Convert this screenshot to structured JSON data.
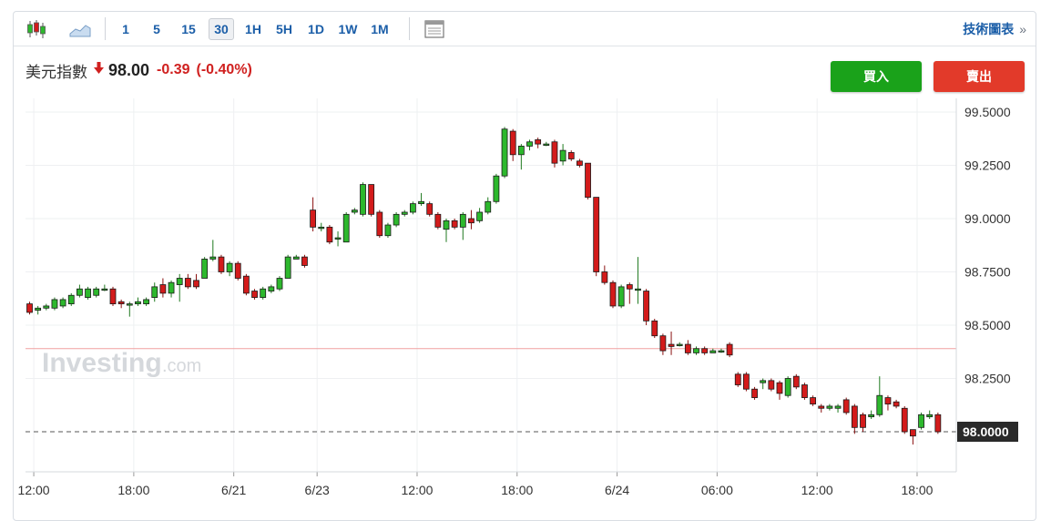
{
  "toolbar": {
    "chart_type_icons": [
      "candlestick-chart-icon",
      "area-chart-icon"
    ],
    "intervals": [
      "1",
      "5",
      "15",
      "30",
      "1H",
      "5H",
      "1D",
      "1W",
      "1M"
    ],
    "active_interval": "30",
    "table_icon": "table-view-icon",
    "tech_chart_label": "技術圖表",
    "tech_chart_chevron": "»"
  },
  "quote": {
    "name": "美元指數",
    "direction_icon": "down-arrow-icon",
    "price": "98.00",
    "change": "-0.39",
    "change_pct": "(-0.40%)"
  },
  "buttons": {
    "buy": "買入",
    "sell": "賣出"
  },
  "colors": {
    "up": "#2db82d",
    "down": "#d31b1b",
    "accent": "#1b5ea8",
    "prev_close_line": "#f0a0a0"
  },
  "watermark": {
    "brand": "Investing",
    "suffix": ".com"
  },
  "chart_data": {
    "type": "candlestick",
    "y_axis": {
      "ticks": [
        "99.5000",
        "99.2500",
        "99.0000",
        "98.7500",
        "98.5000",
        "98.2500"
      ],
      "tick_values": [
        99.5,
        99.25,
        99.0,
        98.75,
        98.5,
        98.25
      ],
      "range": [
        97.8,
        99.6
      ]
    },
    "x_axis": {
      "ticks": [
        "12:00",
        "18:00",
        "6/21",
        "6/23",
        "12:00",
        "18:00",
        "6/24",
        "06:00",
        "12:00",
        "18:00"
      ],
      "tick_index": [
        0.5,
        12.5,
        24.5,
        34.5,
        46.5,
        58.5,
        70.5,
        82.5,
        94.5,
        106.5
      ]
    },
    "current_price": {
      "value": 98.0,
      "label": "98.0000"
    },
    "previous_close": 98.39,
    "grid": true,
    "candles": [
      [
        98.6,
        98.56,
        98.61,
        98.55
      ],
      [
        98.57,
        98.58,
        98.59,
        98.55
      ],
      [
        98.58,
        98.59,
        98.6,
        98.57
      ],
      [
        98.58,
        98.62,
        98.63,
        98.57
      ],
      [
        98.59,
        98.62,
        98.63,
        98.58
      ],
      [
        98.6,
        98.64,
        98.65,
        98.59
      ],
      [
        98.64,
        98.67,
        98.69,
        98.63
      ],
      [
        98.63,
        98.67,
        98.68,
        98.62
      ],
      [
        98.64,
        98.67,
        98.68,
        98.63
      ],
      [
        98.67,
        98.67,
        98.69,
        98.66
      ],
      [
        98.67,
        98.6,
        98.68,
        98.59
      ],
      [
        98.61,
        98.6,
        98.62,
        98.58
      ],
      [
        98.6,
        98.6,
        98.61,
        98.54
      ],
      [
        98.6,
        98.61,
        98.63,
        98.59
      ],
      [
        98.6,
        98.62,
        98.63,
        98.59
      ],
      [
        98.63,
        98.68,
        98.7,
        98.61
      ],
      [
        98.69,
        98.65,
        98.72,
        98.63
      ],
      [
        98.65,
        98.7,
        98.71,
        98.63
      ],
      [
        98.69,
        98.72,
        98.74,
        98.61
      ],
      [
        98.72,
        98.68,
        98.74,
        98.67
      ],
      [
        98.71,
        98.68,
        98.74,
        98.67
      ],
      [
        98.72,
        98.81,
        98.82,
        98.72
      ],
      [
        98.81,
        98.82,
        98.9,
        98.8
      ],
      [
        98.82,
        98.75,
        98.83,
        98.74
      ],
      [
        98.75,
        98.79,
        98.8,
        98.73
      ],
      [
        98.79,
        98.72,
        98.8,
        98.71
      ],
      [
        98.73,
        98.65,
        98.74,
        98.64
      ],
      [
        98.66,
        98.63,
        98.67,
        98.62
      ],
      [
        98.63,
        98.67,
        98.68,
        98.62
      ],
      [
        98.66,
        98.68,
        98.69,
        98.65
      ],
      [
        98.67,
        98.72,
        98.73,
        98.66
      ],
      [
        98.72,
        98.82,
        98.83,
        98.72
      ],
      [
        98.81,
        98.82,
        98.83,
        98.81
      ],
      [
        98.82,
        98.78,
        98.83,
        98.77
      ],
      [
        99.04,
        98.96,
        99.1,
        98.94
      ],
      [
        98.96,
        98.96,
        98.98,
        98.94
      ],
      [
        98.96,
        98.89,
        98.97,
        98.88
      ],
      [
        98.91,
        98.91,
        98.94,
        98.87
      ],
      [
        98.89,
        99.02,
        99.03,
        98.89
      ],
      [
        99.03,
        99.04,
        99.05,
        99.02
      ],
      [
        99.02,
        99.16,
        99.17,
        99.01
      ],
      [
        99.16,
        99.02,
        99.16,
        99.01
      ],
      [
        99.03,
        98.92,
        99.04,
        98.91
      ],
      [
        98.92,
        98.97,
        98.98,
        98.91
      ],
      [
        98.97,
        99.02,
        99.03,
        98.96
      ],
      [
        99.02,
        99.03,
        99.04,
        99.01
      ],
      [
        99.03,
        99.07,
        99.08,
        99.02
      ],
      [
        99.07,
        99.08,
        99.12,
        99.06
      ],
      [
        99.07,
        99.02,
        99.08,
        99.01
      ],
      [
        99.02,
        98.96,
        99.03,
        98.95
      ],
      [
        98.95,
        98.99,
        99.0,
        98.89
      ],
      [
        98.99,
        98.96,
        99.0,
        98.95
      ],
      [
        98.96,
        99.02,
        99.03,
        98.9
      ],
      [
        99.0,
        98.98,
        99.04,
        98.95
      ],
      [
        98.99,
        99.03,
        99.05,
        98.98
      ],
      [
        99.03,
        99.08,
        99.1,
        99.02
      ],
      [
        99.08,
        99.2,
        99.21,
        99.07
      ],
      [
        99.2,
        99.42,
        99.43,
        99.19
      ],
      [
        99.41,
        99.3,
        99.42,
        99.27
      ],
      [
        99.3,
        99.34,
        99.35,
        99.23
      ],
      [
        99.34,
        99.36,
        99.37,
        99.32
      ],
      [
        99.37,
        99.35,
        99.38,
        99.33
      ],
      [
        99.35,
        99.35,
        99.36,
        99.34
      ],
      [
        99.36,
        99.26,
        99.37,
        99.24
      ],
      [
        99.27,
        99.32,
        99.35,
        99.25
      ],
      [
        99.31,
        99.28,
        99.32,
        99.27
      ],
      [
        99.27,
        99.25,
        99.28,
        99.24
      ],
      [
        99.26,
        99.1,
        99.26,
        99.09
      ],
      [
        99.1,
        98.75,
        99.1,
        98.73
      ],
      [
        98.75,
        98.7,
        98.78,
        98.69
      ],
      [
        98.7,
        98.59,
        98.71,
        98.58
      ],
      [
        98.59,
        98.68,
        98.69,
        98.58
      ],
      [
        98.69,
        98.67,
        98.7,
        98.6
      ],
      [
        98.67,
        98.67,
        98.82,
        98.6
      ],
      [
        98.66,
        98.52,
        98.67,
        98.5
      ],
      [
        98.52,
        98.45,
        98.53,
        98.44
      ],
      [
        98.45,
        98.38,
        98.46,
        98.36
      ],
      [
        98.41,
        98.4,
        98.47,
        98.36
      ],
      [
        98.41,
        98.41,
        98.42,
        98.4
      ],
      [
        98.41,
        98.37,
        98.43,
        98.36
      ],
      [
        98.37,
        98.39,
        98.4,
        98.36
      ],
      [
        98.39,
        98.37,
        98.4,
        98.36
      ],
      [
        98.37,
        98.38,
        98.39,
        98.37
      ],
      [
        98.38,
        98.38,
        98.39,
        98.37
      ],
      [
        98.41,
        98.36,
        98.42,
        98.35
      ],
      [
        98.27,
        98.22,
        98.28,
        98.21
      ],
      [
        98.27,
        98.2,
        98.28,
        98.19
      ],
      [
        98.2,
        98.16,
        98.21,
        98.15
      ],
      [
        98.23,
        98.24,
        98.25,
        98.2
      ],
      [
        98.24,
        98.2,
        98.25,
        98.19
      ],
      [
        98.23,
        98.18,
        98.24,
        98.15
      ],
      [
        98.17,
        98.25,
        98.26,
        98.16
      ],
      [
        98.26,
        98.21,
        98.27,
        98.2
      ],
      [
        98.22,
        98.16,
        98.23,
        98.15
      ],
      [
        98.16,
        98.13,
        98.17,
        98.12
      ],
      [
        98.12,
        98.11,
        98.13,
        98.09
      ],
      [
        98.11,
        98.12,
        98.13,
        98.1
      ],
      [
        98.11,
        98.12,
        98.13,
        98.09
      ],
      [
        98.15,
        98.09,
        98.16,
        98.08
      ],
      [
        98.12,
        98.02,
        98.13,
        97.99
      ],
      [
        98.08,
        98.02,
        98.09,
        98.0
      ],
      [
        98.07,
        98.08,
        98.1,
        98.06
      ],
      [
        98.08,
        98.17,
        98.26,
        98.07
      ],
      [
        98.16,
        98.13,
        98.17,
        98.1
      ],
      [
        98.14,
        98.12,
        98.15,
        98.11
      ],
      [
        98.11,
        98.0,
        98.12,
        97.99
      ],
      [
        98.01,
        97.98,
        98.01,
        97.94
      ],
      [
        98.02,
        98.08,
        98.09,
        98.01
      ],
      [
        98.07,
        98.08,
        98.1,
        98.06
      ],
      [
        98.08,
        98.0,
        98.09,
        97.99
      ]
    ]
  }
}
